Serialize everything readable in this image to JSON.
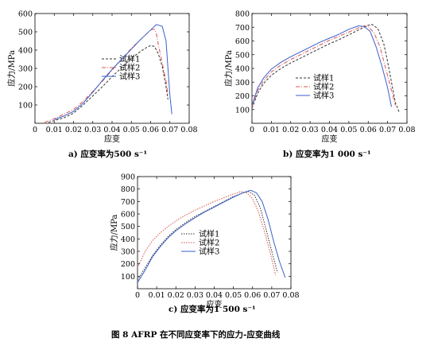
{
  "figure_caption": "图 8  AFRP 在不同应变率下的应力-应变曲线",
  "chart_data": [
    {
      "type": "line",
      "panel_caption": "a) 应变率为500 s⁻¹",
      "xlabel": "应变",
      "ylabel": "应力/MPa",
      "xlim": [
        0,
        0.08
      ],
      "ylim": [
        0,
        600
      ],
      "xticks": [
        "0",
        "0.01",
        "0.02",
        "0.03",
        "0.04",
        "0.05",
        "0.06",
        "0.07",
        "0.08"
      ],
      "yticks": [
        "100",
        "200",
        "300",
        "400",
        "500",
        "600"
      ],
      "legend_position": "center-right",
      "series": [
        {
          "name": "试样1",
          "color": "#333333",
          "dash": "3,2",
          "points": [
            [
              0.007,
              5
            ],
            [
              0.01,
              15
            ],
            [
              0.015,
              30
            ],
            [
              0.02,
              55
            ],
            [
              0.025,
              100
            ],
            [
              0.03,
              150
            ],
            [
              0.035,
              200
            ],
            [
              0.04,
              255
            ],
            [
              0.045,
              305
            ],
            [
              0.05,
              355
            ],
            [
              0.055,
              395
            ],
            [
              0.058,
              415
            ],
            [
              0.06,
              425
            ],
            [
              0.062,
              420
            ],
            [
              0.064,
              380
            ],
            [
              0.066,
              310
            ],
            [
              0.068,
              200
            ],
            [
              0.069,
              130
            ]
          ]
        },
        {
          "name": "试样2",
          "color": "#d9534f",
          "dash": "5,2,1,2",
          "points": [
            [
              0.005,
              5
            ],
            [
              0.01,
              25
            ],
            [
              0.015,
              50
            ],
            [
              0.02,
              75
            ],
            [
              0.025,
              120
            ],
            [
              0.03,
              175
            ],
            [
              0.035,
              230
            ],
            [
              0.04,
              290
            ],
            [
              0.045,
              350
            ],
            [
              0.05,
              410
            ],
            [
              0.055,
              460
            ],
            [
              0.058,
              490
            ],
            [
              0.06,
              510
            ],
            [
              0.062,
              515
            ],
            [
              0.063,
              490
            ],
            [
              0.064,
              430
            ],
            [
              0.066,
              330
            ],
            [
              0.068,
              230
            ],
            [
              0.069,
              160
            ]
          ]
        },
        {
          "name": "试样3",
          "color": "#3a5fcd",
          "dash": "",
          "points": [
            [
              0.01,
              20
            ],
            [
              0.015,
              40
            ],
            [
              0.02,
              65
            ],
            [
              0.025,
              110
            ],
            [
              0.03,
              170
            ],
            [
              0.035,
              235
            ],
            [
              0.04,
              295
            ],
            [
              0.045,
              350
            ],
            [
              0.05,
              405
            ],
            [
              0.055,
              460
            ],
            [
              0.06,
              510
            ],
            [
              0.063,
              540
            ],
            [
              0.066,
              530
            ],
            [
              0.068,
              450
            ],
            [
              0.069,
              300
            ],
            [
              0.07,
              150
            ],
            [
              0.071,
              50
            ]
          ]
        }
      ]
    },
    {
      "type": "line",
      "panel_caption": "b) 应变率为1 000 s⁻¹",
      "xlabel": "应变",
      "ylabel": "应力/MPa",
      "xlim": [
        0,
        0.08
      ],
      "ylim": [
        0,
        800
      ],
      "xticks": [
        "0",
        "0.01",
        "0.02",
        "0.03",
        "0.04",
        "0.05",
        "0.06",
        "0.07",
        "0.08"
      ],
      "yticks": [
        "100",
        "200",
        "300",
        "400",
        "500",
        "600",
        "700",
        "800"
      ],
      "legend_position": "center",
      "series": [
        {
          "name": "试样1",
          "color": "#333333",
          "dash": "3,2",
          "points": [
            [
              0,
              110
            ],
            [
              0.003,
              220
            ],
            [
              0.006,
              290
            ],
            [
              0.01,
              350
            ],
            [
              0.015,
              400
            ],
            [
              0.02,
              440
            ],
            [
              0.025,
              475
            ],
            [
              0.03,
              510
            ],
            [
              0.035,
              545
            ],
            [
              0.04,
              580
            ],
            [
              0.045,
              610
            ],
            [
              0.05,
              645
            ],
            [
              0.055,
              680
            ],
            [
              0.06,
              715
            ],
            [
              0.062,
              720
            ],
            [
              0.065,
              690
            ],
            [
              0.068,
              580
            ],
            [
              0.07,
              450
            ],
            [
              0.072,
              300
            ],
            [
              0.074,
              150
            ],
            [
              0.076,
              80
            ]
          ]
        },
        {
          "name": "试样2",
          "color": "#d9534f",
          "dash": "5,2,1,2",
          "points": [
            [
              0,
              120
            ],
            [
              0.003,
              240
            ],
            [
              0.006,
              310
            ],
            [
              0.01,
              375
            ],
            [
              0.015,
              425
            ],
            [
              0.02,
              465
            ],
            [
              0.025,
              500
            ],
            [
              0.03,
              535
            ],
            [
              0.035,
              570
            ],
            [
              0.04,
              605
            ],
            [
              0.045,
              635
            ],
            [
              0.05,
              665
            ],
            [
              0.055,
              695
            ],
            [
              0.058,
              710
            ],
            [
              0.06,
              705
            ],
            [
              0.063,
              660
            ],
            [
              0.066,
              560
            ],
            [
              0.069,
              400
            ],
            [
              0.072,
              240
            ],
            [
              0.074,
              130
            ]
          ]
        },
        {
          "name": "试样3",
          "color": "#3a5fcd",
          "dash": "",
          "points": [
            [
              0,
              130
            ],
            [
              0.003,
              260
            ],
            [
              0.006,
              330
            ],
            [
              0.01,
              395
            ],
            [
              0.015,
              445
            ],
            [
              0.02,
              485
            ],
            [
              0.025,
              520
            ],
            [
              0.03,
              555
            ],
            [
              0.035,
              590
            ],
            [
              0.04,
              620
            ],
            [
              0.045,
              650
            ],
            [
              0.05,
              685
            ],
            [
              0.055,
              710
            ],
            [
              0.058,
              705
            ],
            [
              0.061,
              670
            ],
            [
              0.064,
              560
            ],
            [
              0.067,
              420
            ],
            [
              0.07,
              260
            ],
            [
              0.072,
              120
            ]
          ]
        }
      ]
    },
    {
      "type": "line",
      "panel_caption": "c) 应变率为1 500 s⁻¹",
      "xlabel": "应变",
      "ylabel": "应力/MPa",
      "xlim": [
        0,
        0.08
      ],
      "ylim": [
        0,
        900
      ],
      "xticks": [
        "0",
        "0.01",
        "0.02",
        "0.03",
        "0.04",
        "0.05",
        "0.06",
        "0.07",
        "0.08"
      ],
      "yticks": [
        "100",
        "200",
        "300",
        "400",
        "500",
        "600",
        "700",
        "800",
        "900"
      ],
      "legend_position": "center",
      "series": [
        {
          "name": "试样1",
          "color": "#333333",
          "dash": "1.5,1.5",
          "points": [
            [
              0,
              70
            ],
            [
              0.004,
              170
            ],
            [
              0.008,
              270
            ],
            [
              0.012,
              350
            ],
            [
              0.016,
              420
            ],
            [
              0.02,
              475
            ],
            [
              0.025,
              530
            ],
            [
              0.03,
              580
            ],
            [
              0.035,
              620
            ],
            [
              0.04,
              660
            ],
            [
              0.045,
              700
            ],
            [
              0.05,
              740
            ],
            [
              0.055,
              770
            ],
            [
              0.058,
              780
            ],
            [
              0.061,
              750
            ],
            [
              0.064,
              650
            ],
            [
              0.067,
              480
            ],
            [
              0.07,
              300
            ],
            [
              0.073,
              130
            ]
          ]
        },
        {
          "name": "试样2",
          "color": "#d9534f",
          "dash": "1.5,1.5",
          "points": [
            [
              0,
              170
            ],
            [
              0.004,
              300
            ],
            [
              0.008,
              390
            ],
            [
              0.012,
              450
            ],
            [
              0.016,
              500
            ],
            [
              0.02,
              545
            ],
            [
              0.025,
              590
            ],
            [
              0.03,
              630
            ],
            [
              0.035,
              665
            ],
            [
              0.04,
              700
            ],
            [
              0.045,
              730
            ],
            [
              0.05,
              760
            ],
            [
              0.054,
              780
            ],
            [
              0.057,
              770
            ],
            [
              0.06,
              720
            ],
            [
              0.063,
              620
            ],
            [
              0.066,
              470
            ],
            [
              0.069,
              300
            ],
            [
              0.072,
              110
            ]
          ]
        },
        {
          "name": "试样3",
          "color": "#3a5fcd",
          "dash": "",
          "points": [
            [
              0,
              50
            ],
            [
              0.004,
              150
            ],
            [
              0.008,
              260
            ],
            [
              0.012,
              340
            ],
            [
              0.016,
              410
            ],
            [
              0.02,
              465
            ],
            [
              0.025,
              520
            ],
            [
              0.03,
              570
            ],
            [
              0.035,
              615
            ],
            [
              0.04,
              655
            ],
            [
              0.045,
              695
            ],
            [
              0.05,
              735
            ],
            [
              0.055,
              770
            ],
            [
              0.059,
              790
            ],
            [
              0.062,
              770
            ],
            [
              0.065,
              700
            ],
            [
              0.068,
              560
            ],
            [
              0.071,
              380
            ],
            [
              0.074,
              220
            ],
            [
              0.077,
              90
            ]
          ]
        }
      ]
    }
  ]
}
